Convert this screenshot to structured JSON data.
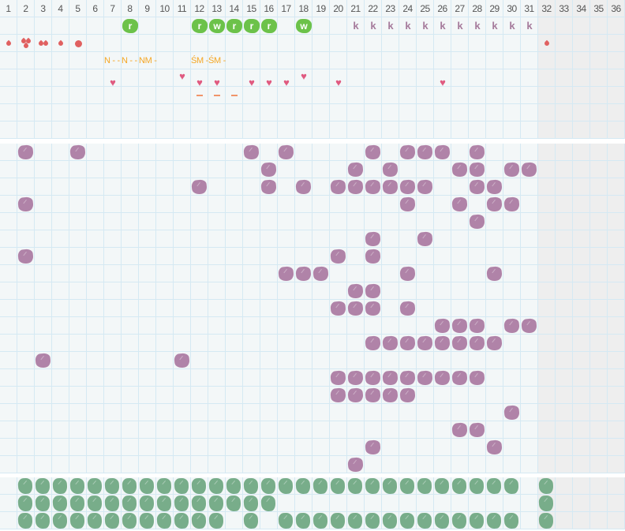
{
  "columns": [
    "1",
    "2",
    "3",
    "4",
    "5",
    "6",
    "7",
    "8",
    "9",
    "10",
    "11",
    "12",
    "13",
    "14",
    "15",
    "16",
    "17",
    "18",
    "19",
    "20",
    "21",
    "22",
    "23",
    "24",
    "25",
    "26",
    "27",
    "28",
    "29",
    "30",
    "31",
    "32",
    "33",
    "34",
    "35",
    "36"
  ],
  "greyed_from_column": 32,
  "top": {
    "badges": [
      {
        "col": 8,
        "letter": "r"
      },
      {
        "col": 12,
        "letter": "r"
      },
      {
        "col": 13,
        "letter": "w"
      },
      {
        "col": 14,
        "letter": "r"
      },
      {
        "col": 15,
        "letter": "r"
      },
      {
        "col": 16,
        "letter": "r"
      },
      {
        "col": 18,
        "letter": "w"
      }
    ],
    "k_marks": [
      {
        "col": 21,
        "letter": "k"
      },
      {
        "col": 22,
        "letter": "k"
      },
      {
        "col": 23,
        "letter": "k"
      },
      {
        "col": 24,
        "letter": "k"
      },
      {
        "col": 25,
        "letter": "k"
      },
      {
        "col": 26,
        "letter": "k"
      },
      {
        "col": 27,
        "letter": "k"
      },
      {
        "col": 28,
        "letter": "k"
      },
      {
        "col": 29,
        "letter": "k"
      },
      {
        "col": 30,
        "letter": "k"
      },
      {
        "col": 31,
        "letter": "k"
      }
    ],
    "drops": [
      {
        "col": 1,
        "count": 1
      },
      {
        "col": 2,
        "count": 3
      },
      {
        "col": 3,
        "count": 2
      },
      {
        "col": 4,
        "count": 1
      },
      {
        "col": 5,
        "type": "dot"
      },
      {
        "col": 32,
        "count": 1
      }
    ],
    "notes": [
      {
        "col": 7,
        "text": "N -  -"
      },
      {
        "col": 8,
        "text": "N -  -"
      },
      {
        "col": 9,
        "text": "NM -"
      },
      {
        "col": 12,
        "text": "ŚM -"
      },
      {
        "col": 13,
        "text": "ŚM -"
      }
    ],
    "hearts": [
      {
        "col": 7,
        "pos": "low"
      },
      {
        "col": 11,
        "pos": "high"
      },
      {
        "col": 12,
        "pos": "low"
      },
      {
        "col": 13,
        "pos": "low"
      },
      {
        "col": 15,
        "pos": "low"
      },
      {
        "col": 16,
        "pos": "low"
      },
      {
        "col": 17,
        "pos": "low"
      },
      {
        "col": 18,
        "pos": "high"
      },
      {
        "col": 20,
        "pos": "low"
      },
      {
        "col": 26,
        "pos": "low"
      }
    ],
    "dash_cols": [
      12,
      13,
      14
    ]
  },
  "purple_rows": [
    [
      2,
      5,
      15,
      17,
      22,
      24,
      25,
      26,
      28
    ],
    [
      16,
      21,
      23,
      27,
      28,
      30,
      31
    ],
    [
      12,
      16,
      18,
      20,
      21,
      22,
      23,
      24,
      25,
      28,
      29
    ],
    [
      2,
      24,
      27,
      29,
      30
    ],
    [
      28
    ],
    [
      22,
      25
    ],
    [
      2,
      20,
      22
    ],
    [
      17,
      18,
      19,
      24,
      29
    ],
    [
      21,
      22
    ],
    [
      20,
      21,
      22,
      24
    ],
    [
      26,
      27,
      28,
      30,
      31
    ],
    [
      22,
      23,
      24,
      25,
      26,
      27,
      28,
      29
    ],
    [
      3,
      11
    ],
    [
      20,
      21,
      22,
      23,
      24,
      25,
      26,
      27,
      28
    ],
    [
      20,
      21,
      22,
      23,
      24
    ],
    [
      30
    ],
    [
      27,
      28
    ],
    [
      22,
      29
    ],
    [
      21
    ]
  ],
  "green_rows": [
    [
      2,
      3,
      4,
      5,
      6,
      7,
      8,
      9,
      10,
      11,
      12,
      13,
      14,
      15,
      16,
      17,
      18,
      19,
      20,
      21,
      22,
      23,
      24,
      25,
      26,
      27,
      28,
      29,
      30,
      32
    ],
    [
      2,
      3,
      4,
      5,
      6,
      7,
      8,
      9,
      10,
      11,
      12,
      13,
      14,
      15,
      16,
      32
    ],
    [
      2,
      3,
      4,
      5,
      6,
      7,
      8,
      9,
      10,
      11,
      12,
      13,
      15,
      17,
      18,
      19,
      20,
      21,
      22,
      23,
      24,
      25,
      26,
      27,
      28,
      29,
      30,
      32
    ]
  ],
  "colors": {
    "grid_line": "#d5e9f3",
    "background": "#f3f7f8",
    "greyed": "#eeeeee",
    "purple_mark": "#b083a8",
    "green_mark": "#78ad8a",
    "green_badge": "#6cc24a",
    "k_mark": "#a57a9b",
    "drop": "#e06060",
    "heart": "#e05a80",
    "note": "#f5a623",
    "dash": "#f0946a"
  }
}
